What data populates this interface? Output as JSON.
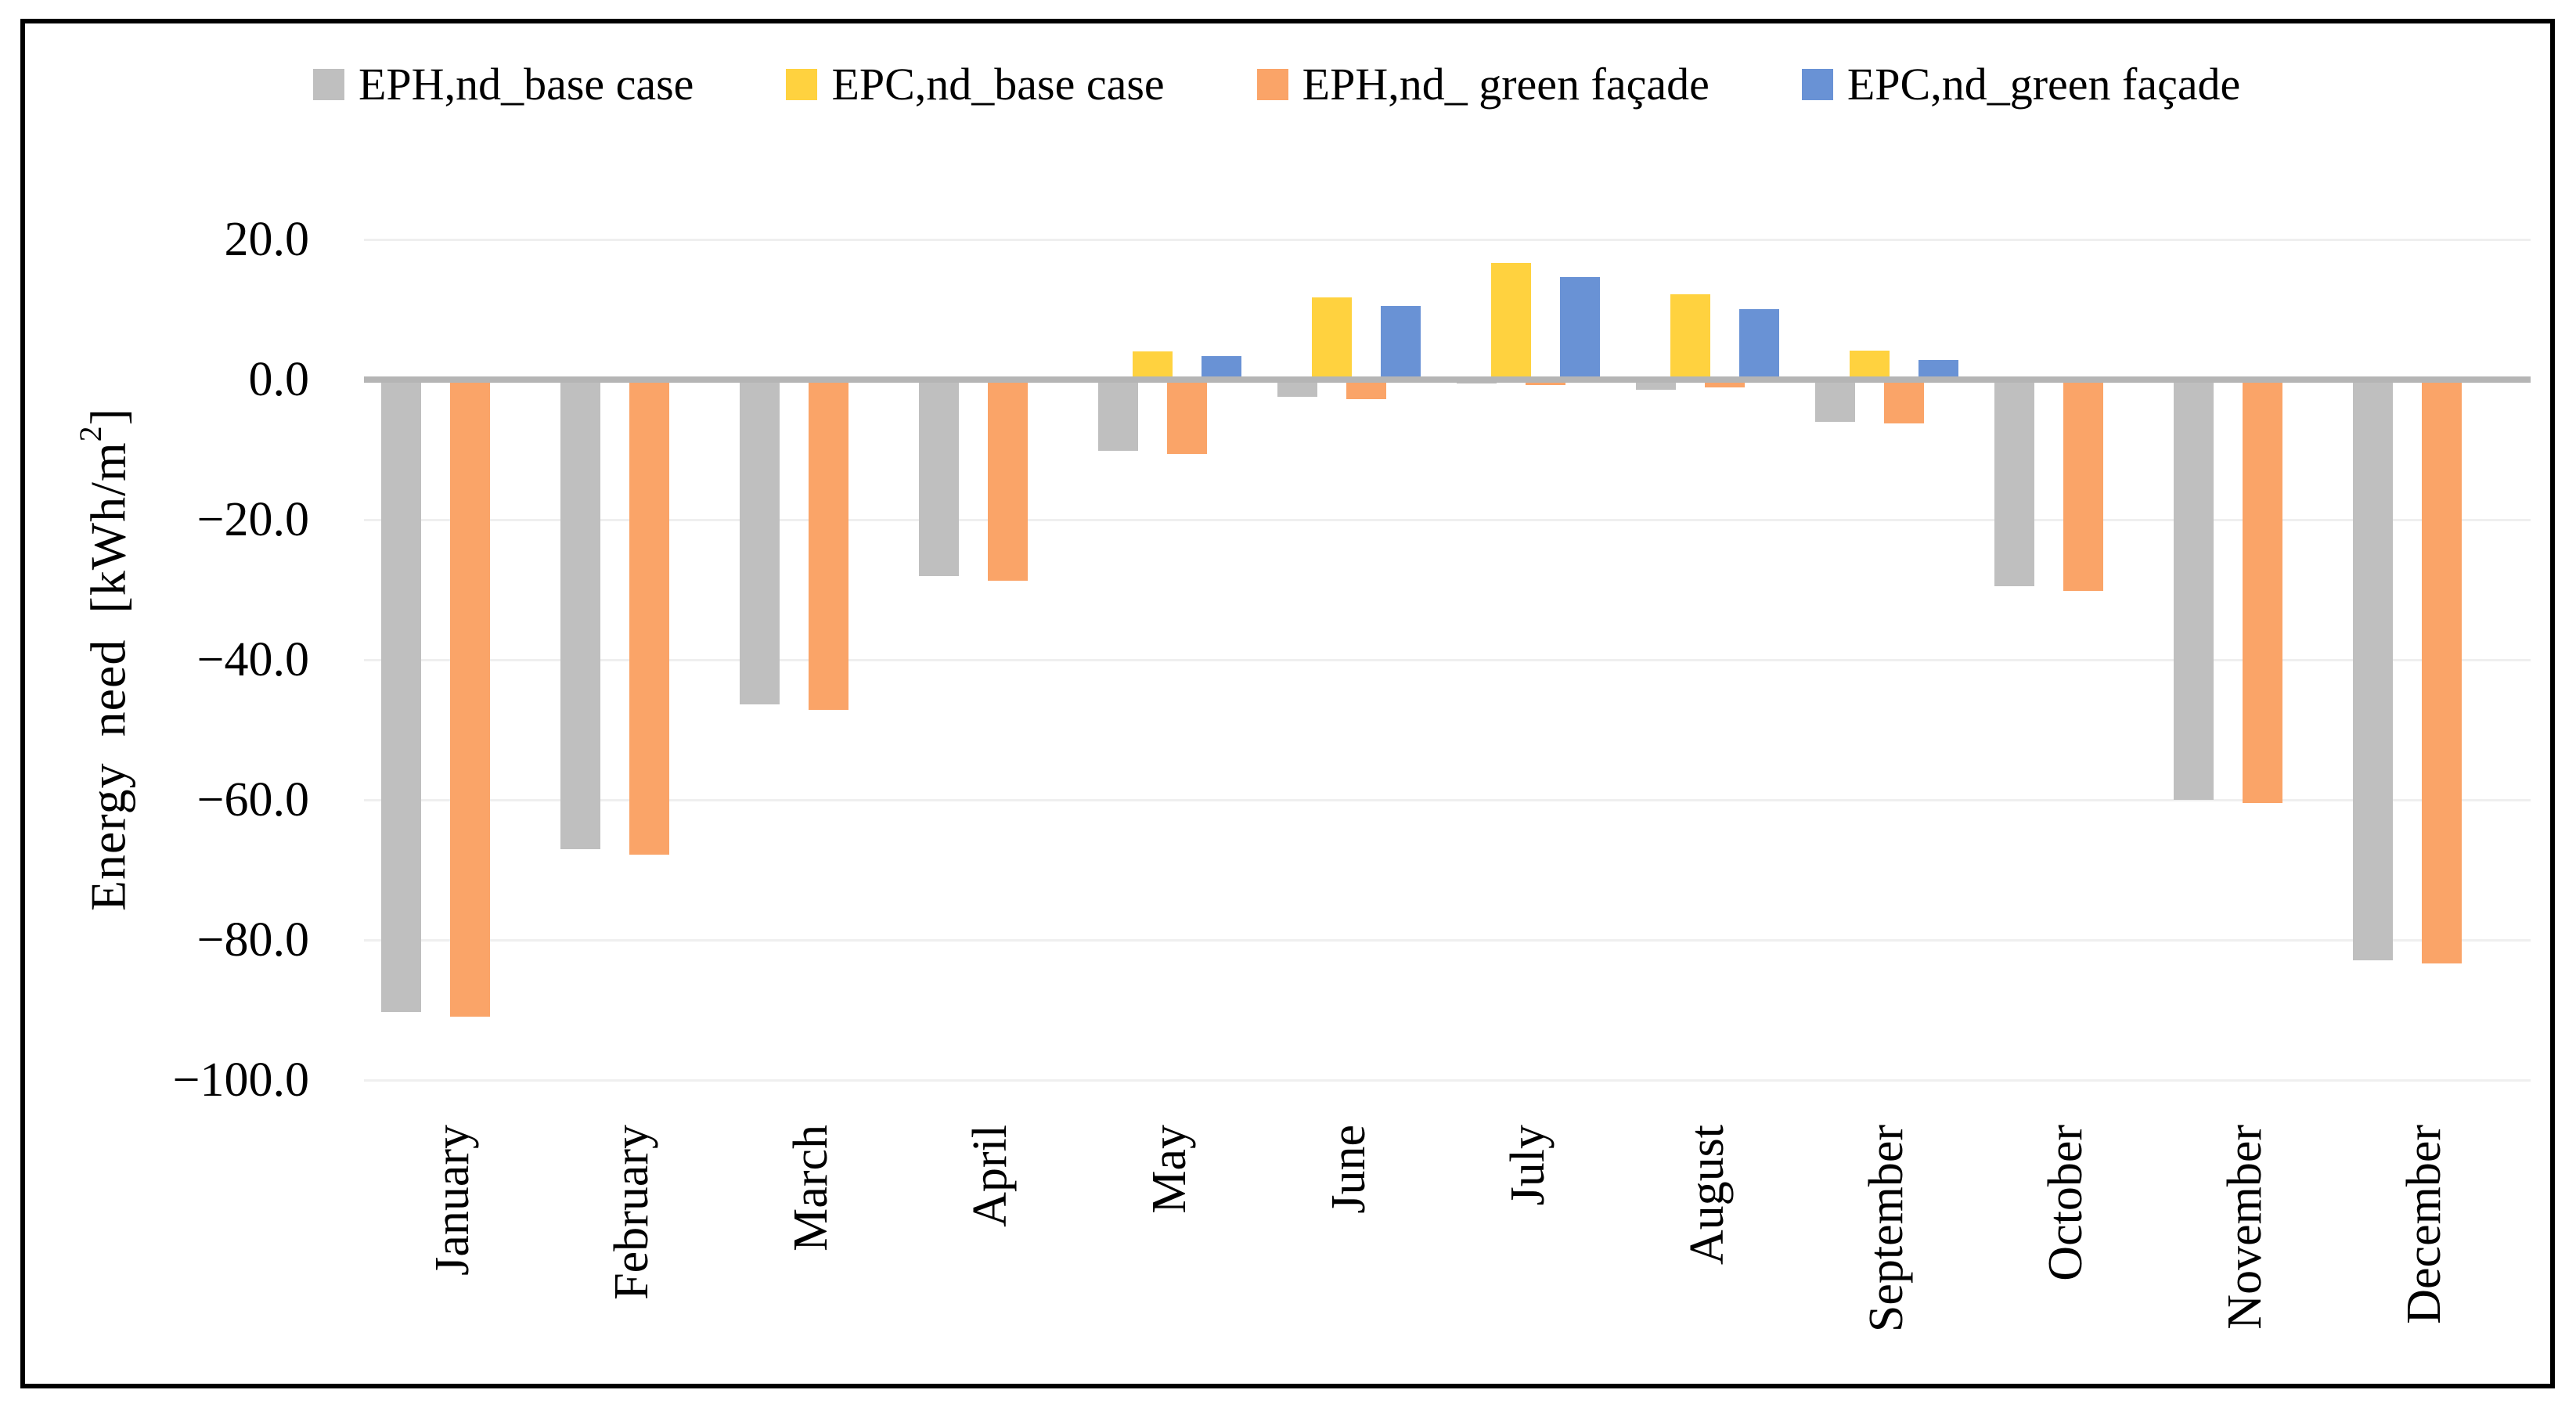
{
  "y_axis": {
    "title_main": "Energy need [kWh/m",
    "title_sup": "2",
    "title_close": "]"
  },
  "chart_data": {
    "type": "bar",
    "title": "",
    "ylabel": "Energy need [kWh/m2]",
    "xlabel": "",
    "ylim": [
      -100,
      20
    ],
    "ytick_step": 20,
    "grid": true,
    "legend_position": "top",
    "categories": [
      "January",
      "February",
      "March",
      "April",
      "May",
      "June",
      "July",
      "August",
      "September",
      "October",
      "November",
      "December"
    ],
    "yticks": [
      {
        "value": 20,
        "label": "20.0"
      },
      {
        "value": 0,
        "label": "0.0"
      },
      {
        "value": -20,
        "label": "−20.0"
      },
      {
        "value": -40,
        "label": "−40.0"
      },
      {
        "value": -60,
        "label": "−60.0"
      },
      {
        "value": -80,
        "label": "−80.0"
      },
      {
        "value": -100,
        "label": "−100.0"
      }
    ],
    "series": [
      {
        "name": "EPH,nd_base case",
        "color": "#BFBFBF",
        "values": [
          -90.3,
          -67.0,
          -46.4,
          -28.0,
          -10.2,
          -2.5,
          -0.6,
          -1.5,
          -6.0,
          -29.5,
          -60.0,
          -82.9
        ]
      },
      {
        "name": "EPC,nd_base case",
        "color": "#FFD23F",
        "values": [
          0,
          0,
          0,
          0,
          4.0,
          11.7,
          16.6,
          12.2,
          4.1,
          0,
          0,
          0
        ]
      },
      {
        "name": "EPH,nd_ green façade",
        "color": "#FAA468",
        "values": [
          -90.9,
          -67.8,
          -47.2,
          -28.7,
          -10.6,
          -2.8,
          -0.8,
          -1.1,
          -6.3,
          -30.2,
          -60.5,
          -83.3
        ]
      },
      {
        "name": "EPC,nd_green façade",
        "color": "#6992D5",
        "values": [
          0,
          0,
          0,
          0,
          3.4,
          10.5,
          14.6,
          10.1,
          2.8,
          0,
          0,
          0
        ]
      }
    ]
  }
}
